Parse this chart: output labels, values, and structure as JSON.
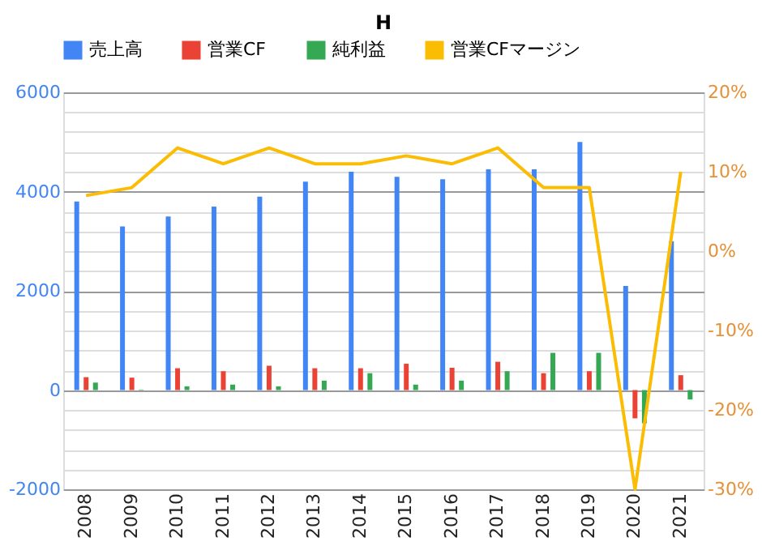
{
  "chart_data": {
    "type": "bar",
    "title": "H",
    "categories": [
      "2008",
      "2009",
      "2010",
      "2011",
      "2012",
      "2013",
      "2014",
      "2015",
      "2016",
      "2017",
      "2018",
      "2019",
      "2020",
      "2021"
    ],
    "series": [
      {
        "name": "売上高",
        "color": "#4285f4",
        "values": [
          3800,
          3300,
          3500,
          3700,
          3900,
          4200,
          4400,
          4300,
          4250,
          4450,
          4450,
          5000,
          2100,
          3000
        ]
      },
      {
        "name": "営業CF",
        "color": "#ea4335",
        "values": [
          260,
          250,
          440,
          380,
          490,
          440,
          440,
          530,
          450,
          570,
          340,
          380,
          -570,
          300
        ]
      },
      {
        "name": "純利益",
        "color": "#34a853",
        "values": [
          150,
          10,
          75,
          110,
          75,
          190,
          340,
          110,
          190,
          380,
          750,
          750,
          -670,
          -190
        ]
      },
      {
        "name": "営業CFマージン",
        "color": "#fbbc04",
        "type": "line",
        "axis": "y2",
        "values": [
          7,
          8,
          13,
          11,
          13,
          11,
          11,
          12,
          11,
          13,
          8,
          8,
          -30,
          10
        ]
      }
    ],
    "ylim": [
      -2000,
      6000
    ],
    "yticks": [
      -2000,
      {
        "value": -1600,
        "label": null
      },
      {
        "value": -1200,
        "label": null
      },
      {
        "value": -800,
        "label": null
      },
      {
        "value": -400,
        "label": null
      },
      0,
      {
        "value": 400,
        "label": null
      },
      {
        "value": 800,
        "label": null
      },
      {
        "value": 1200,
        "label": null
      },
      {
        "value": 1600,
        "label": null
      },
      2000,
      {
        "value": 2400,
        "label": null
      },
      {
        "value": 2800,
        "label": null
      },
      {
        "value": 3200,
        "label": null
      },
      {
        "value": 3600,
        "label": null
      },
      4000,
      {
        "value": 4400,
        "label": null
      },
      {
        "value": 4800,
        "label": null
      },
      {
        "value": 5200,
        "label": null
      },
      {
        "value": 5600,
        "label": null
      },
      6000
    ],
    "y2lim": [
      -30,
      20
    ],
    "y2ticks": [
      {
        "value": -30,
        "label": "-30%"
      },
      {
        "value": -20,
        "label": "-20%"
      },
      {
        "value": -10,
        "label": "-10%"
      },
      {
        "value": 0,
        "label": "0%"
      },
      {
        "value": 10,
        "label": "10%"
      },
      {
        "value": 20,
        "label": "20%"
      }
    ],
    "grid": true,
    "legend": "top"
  }
}
